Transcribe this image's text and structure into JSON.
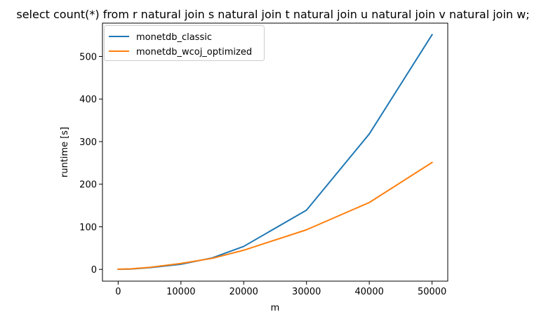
{
  "chart_data": {
    "type": "line",
    "title": "select count(*) from r natural join s natural join t natural join u natural join v natural join w;",
    "xlabel": "m",
    "ylabel": "runtime [s]",
    "xlim": [
      -2500,
      52500
    ],
    "ylim": [
      -27.6,
      578.2
    ],
    "xticks": [
      0,
      10000,
      20000,
      30000,
      40000,
      50000
    ],
    "yticks": [
      0,
      100,
      200,
      300,
      400,
      500
    ],
    "grid": false,
    "legend_position": "upper-left",
    "series": [
      {
        "name": "monetdb_classic",
        "color": "#1f77b4",
        "x": [
          0,
          2000,
          5000,
          10000,
          15000,
          20000,
          30000,
          40000,
          50000
        ],
        "y": [
          0.2,
          0.8,
          4.0,
          12.0,
          27.0,
          54.0,
          139.0,
          318.0,
          551.0
        ]
      },
      {
        "name": "monetdb_wcoj_optimized",
        "color": "#ff7f0e",
        "x": [
          0,
          2000,
          5000,
          10000,
          15000,
          20000,
          30000,
          40000,
          50000
        ],
        "y": [
          0.4,
          1.2,
          4.8,
          14.0,
          26.0,
          45.0,
          93.0,
          157.0,
          251.0
        ]
      }
    ]
  }
}
